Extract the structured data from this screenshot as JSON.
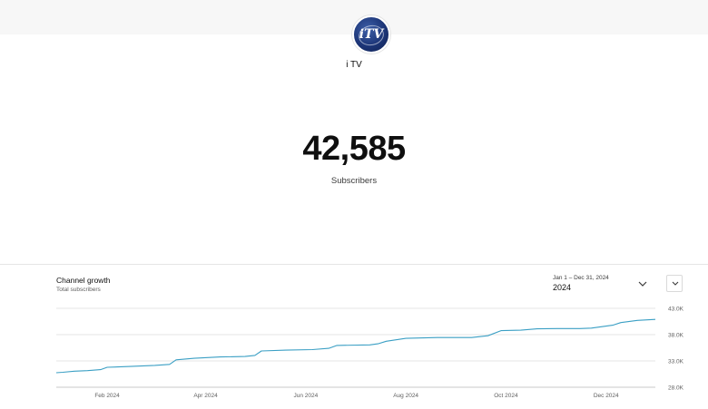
{
  "channel": {
    "name": "i TV",
    "avatar_text": "iTV"
  },
  "stats": {
    "subscriber_count": "42,585",
    "subscriber_label": "Subscribers"
  },
  "panel": {
    "title": "Channel growth",
    "subtitle": "Total subscribers",
    "date_range": "Jan 1 – Dec 31, 2024",
    "year": "2024",
    "dropdown_icon": "chevron-down-icon",
    "expand_icon": "chevron-down-icon"
  },
  "colors": {
    "line": "#3a9fc4",
    "grid": "#e6e6e6",
    "axis": "#c9c9c9"
  },
  "chart_data": {
    "type": "line",
    "title": "Channel growth",
    "subtitle": "Total subscribers",
    "xlabel": "",
    "ylabel": "",
    "ylim": [
      28000,
      43000
    ],
    "y_ticks": [
      {
        "value": 43000,
        "label": "43.0K"
      },
      {
        "value": 38000,
        "label": "38.0K"
      },
      {
        "value": 33000,
        "label": "33.0K"
      },
      {
        "value": 28000,
        "label": "28.0K"
      }
    ],
    "x_ticks": [
      {
        "date": "2024-02-01",
        "label": "Feb 2024"
      },
      {
        "date": "2024-04-01",
        "label": "Apr 2024"
      },
      {
        "date": "2024-06-01",
        "label": "Jun 2024"
      },
      {
        "date": "2024-08-01",
        "label": "Aug 2024"
      },
      {
        "date": "2024-10-01",
        "label": "Oct 2024"
      },
      {
        "date": "2024-12-01",
        "label": "Dec 2024"
      }
    ],
    "xlim": [
      "2024-01-01",
      "2024-12-31"
    ],
    "grid": true,
    "series": [
      {
        "values": [
          {
            "x": "2024-01-01",
            "y": 30750
          },
          {
            "x": "2024-01-05",
            "y": 30850
          },
          {
            "x": "2024-01-12",
            "y": 31050
          },
          {
            "x": "2024-01-20",
            "y": 31150
          },
          {
            "x": "2024-01-28",
            "y": 31350
          },
          {
            "x": "2024-02-01",
            "y": 31800
          },
          {
            "x": "2024-02-15",
            "y": 31950
          },
          {
            "x": "2024-03-01",
            "y": 32150
          },
          {
            "x": "2024-03-10",
            "y": 32350
          },
          {
            "x": "2024-03-14",
            "y": 33200
          },
          {
            "x": "2024-03-25",
            "y": 33500
          },
          {
            "x": "2024-04-10",
            "y": 33750
          },
          {
            "x": "2024-04-25",
            "y": 33850
          },
          {
            "x": "2024-05-01",
            "y": 34050
          },
          {
            "x": "2024-05-05",
            "y": 34900
          },
          {
            "x": "2024-05-20",
            "y": 35050
          },
          {
            "x": "2024-06-05",
            "y": 35150
          },
          {
            "x": "2024-06-15",
            "y": 35400
          },
          {
            "x": "2024-06-20",
            "y": 35950
          },
          {
            "x": "2024-07-10",
            "y": 36050
          },
          {
            "x": "2024-07-15",
            "y": 36250
          },
          {
            "x": "2024-07-20",
            "y": 36750
          },
          {
            "x": "2024-08-01",
            "y": 37300
          },
          {
            "x": "2024-08-20",
            "y": 37450
          },
          {
            "x": "2024-09-10",
            "y": 37450
          },
          {
            "x": "2024-09-20",
            "y": 37800
          },
          {
            "x": "2024-09-28",
            "y": 38750
          },
          {
            "x": "2024-10-10",
            "y": 38850
          },
          {
            "x": "2024-10-20",
            "y": 39100
          },
          {
            "x": "2024-11-01",
            "y": 39150
          },
          {
            "x": "2024-11-15",
            "y": 39150
          },
          {
            "x": "2024-11-22",
            "y": 39250
          },
          {
            "x": "2024-12-05",
            "y": 39800
          },
          {
            "x": "2024-12-10",
            "y": 40300
          },
          {
            "x": "2024-12-20",
            "y": 40700
          },
          {
            "x": "2024-12-31",
            "y": 40900
          }
        ]
      }
    ]
  }
}
